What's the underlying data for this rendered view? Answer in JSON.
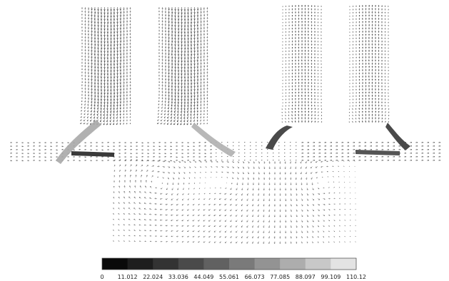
{
  "figure": {
    "type": "velocity vector field (grayscale)",
    "colorbar": {
      "ticks": [
        "0",
        "11.012",
        "22.024",
        "33.036",
        "44.049",
        "55.061",
        "66.073",
        "77.085",
        "88.097",
        "99.109",
        "110.12"
      ],
      "min": 0,
      "max": 110.12,
      "steps": 10,
      "colors": [
        "#0a0a0a",
        "#1e1e1e",
        "#333333",
        "#4a4a4a",
        "#616161",
        "#7a7a7a",
        "#939393",
        "#adadad",
        "#c8c8c8",
        "#e3e3e3",
        "#ffffff"
      ]
    },
    "ports": [
      "left-intake-1",
      "left-intake-2",
      "right-exhaust-1",
      "right-exhaust-2"
    ]
  }
}
